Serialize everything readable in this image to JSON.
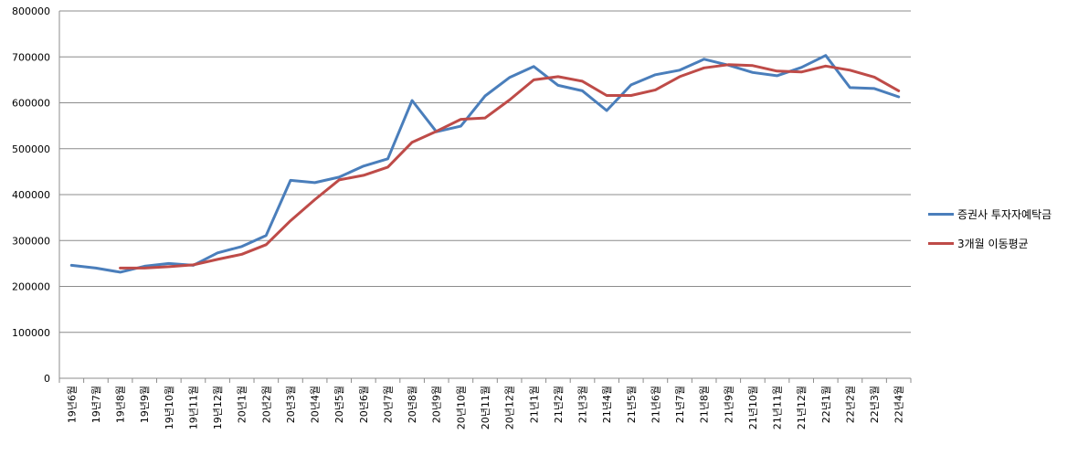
{
  "chart_data": {
    "type": "line",
    "title": "",
    "xlabel": "",
    "ylabel": "",
    "ylim": [
      0,
      800000
    ],
    "yticks": [
      0,
      100000,
      200000,
      300000,
      400000,
      500000,
      600000,
      700000,
      800000
    ],
    "ytick_labels": [
      "0",
      "100000",
      "200000",
      "300000",
      "400000",
      "500000",
      "600000",
      "700000",
      "800000"
    ],
    "grid": "horizontal",
    "legend_position": "right",
    "categories": [
      "19년6월",
      "19년7월",
      "19년8월",
      "19년9월",
      "19년10월",
      "19년11월",
      "19년12월",
      "20년1월",
      "20년2월",
      "20년3월",
      "20년4월",
      "20년5월",
      "20년6월",
      "20년7월",
      "20년8월",
      "20년9월",
      "20년10월",
      "20년11월",
      "20년12월",
      "21년1월",
      "21년2월",
      "21년3월",
      "21년4월",
      "21년5월",
      "21년6월",
      "21년7월",
      "21년8월",
      "21년9월",
      "21년10월",
      "21년11월",
      "21년12월",
      "22년1월",
      "22년2월",
      "22년3월",
      "22년4월"
    ],
    "series": [
      {
        "name": "증권사 투자자예탁금",
        "color": "#4a7ebb",
        "values": [
          246000,
          240000,
          231000,
          244000,
          250000,
          246000,
          273000,
          287000,
          311000,
          431000,
          426000,
          438000,
          462000,
          478000,
          605000,
          537000,
          549000,
          615000,
          655000,
          679000,
          638000,
          626000,
          583000,
          639000,
          661000,
          671000,
          695000,
          682000,
          666000,
          659000,
          677000,
          703000,
          633000,
          631000,
          613000
        ]
      },
      {
        "name": "3개월 이동평균",
        "color": "#be4b48",
        "values": [
          null,
          null,
          240000,
          240000,
          243000,
          247000,
          259000,
          270000,
          291000,
          343000,
          389000,
          432000,
          442000,
          460000,
          514000,
          538000,
          564000,
          567000,
          606000,
          650000,
          657000,
          647000,
          616000,
          616000,
          628000,
          657000,
          676000,
          683000,
          681000,
          669000,
          667000,
          680000,
          671000,
          656000,
          626000
        ]
      }
    ]
  }
}
